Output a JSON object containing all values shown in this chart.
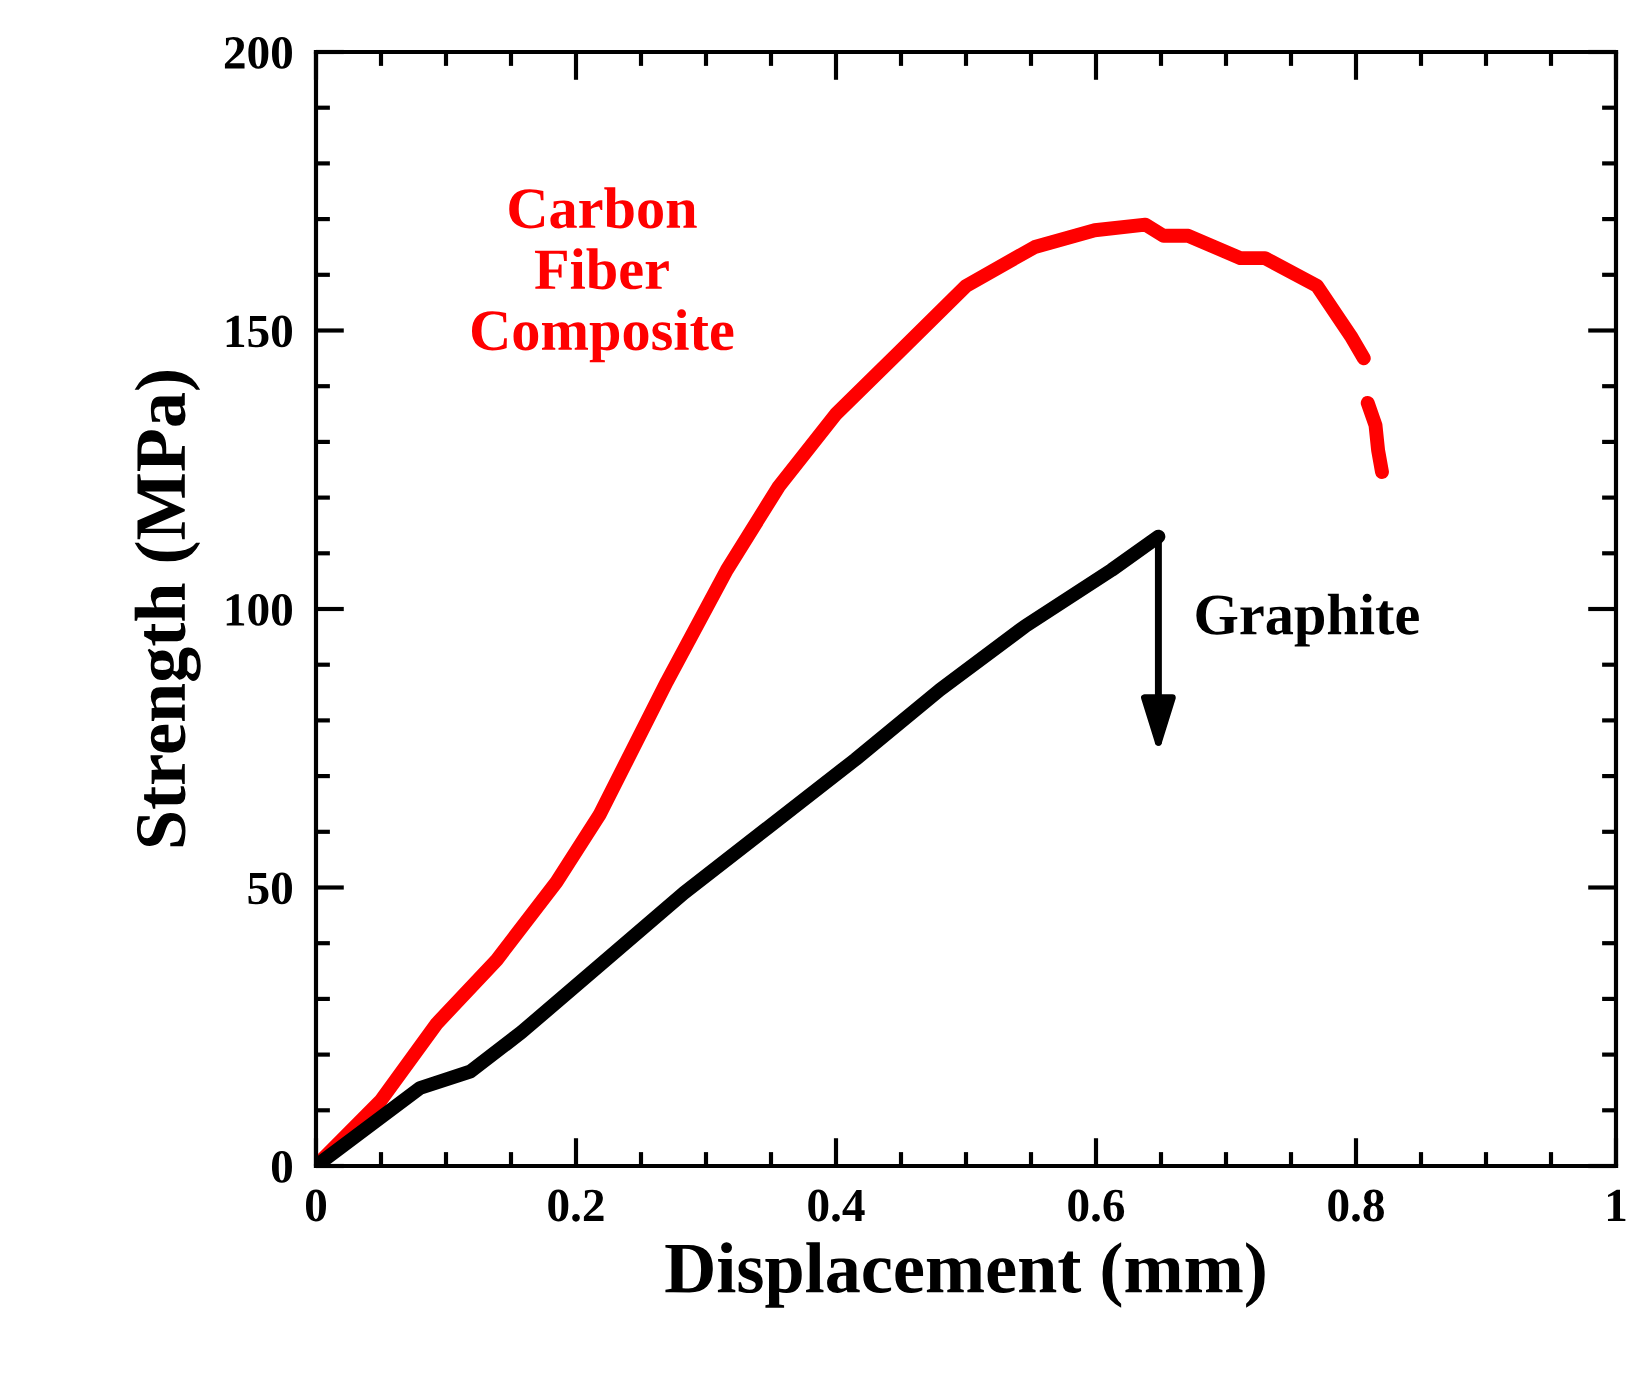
{
  "chart_data": {
    "type": "line",
    "xlabel": "Displacement (mm)",
    "ylabel": "Strength (MPa)",
    "xlim": [
      0,
      1
    ],
    "ylim": [
      0,
      200
    ],
    "xticks": [
      0,
      0.2,
      0.4,
      0.6,
      0.8,
      1
    ],
    "yticks": [
      0,
      50,
      100,
      150,
      200
    ],
    "grid": false,
    "legend": false,
    "marker": "none",
    "line_style": "solid",
    "series": [
      {
        "name": "Carbon\nFiber\nComposite",
        "color": "#ff0000",
        "x": [
          0,
          0.05,
          0.093,
          0.139,
          0.185,
          0.218,
          0.27,
          0.316,
          0.356,
          0.4,
          0.448,
          0.5,
          0.553,
          0.599,
          0.638,
          0.652,
          0.671,
          0.711,
          0.73,
          0.77,
          0.796,
          0.806,
          0.808,
          0.809,
          0.815,
          0.817,
          0.82
        ],
        "values": [
          0,
          11.8,
          25.6,
          37,
          51,
          63,
          87,
          107,
          122,
          135,
          146,
          158,
          165,
          168,
          169,
          167,
          167,
          163,
          163,
          158,
          149,
          145,
          null,
          137,
          133,
          128.5,
          124.6
        ]
      },
      {
        "name": "Graphite",
        "color": "#000000",
        "x": [
          0,
          0.04,
          0.08,
          0.119,
          0.158,
          0.218,
          0.283,
          0.349,
          0.415,
          0.48,
          0.546,
          0.612,
          0.648
        ],
        "values": [
          0,
          7,
          14,
          17,
          24,
          36,
          49,
          61,
          73,
          85.5,
          97,
          107,
          113
        ]
      }
    ]
  }
}
